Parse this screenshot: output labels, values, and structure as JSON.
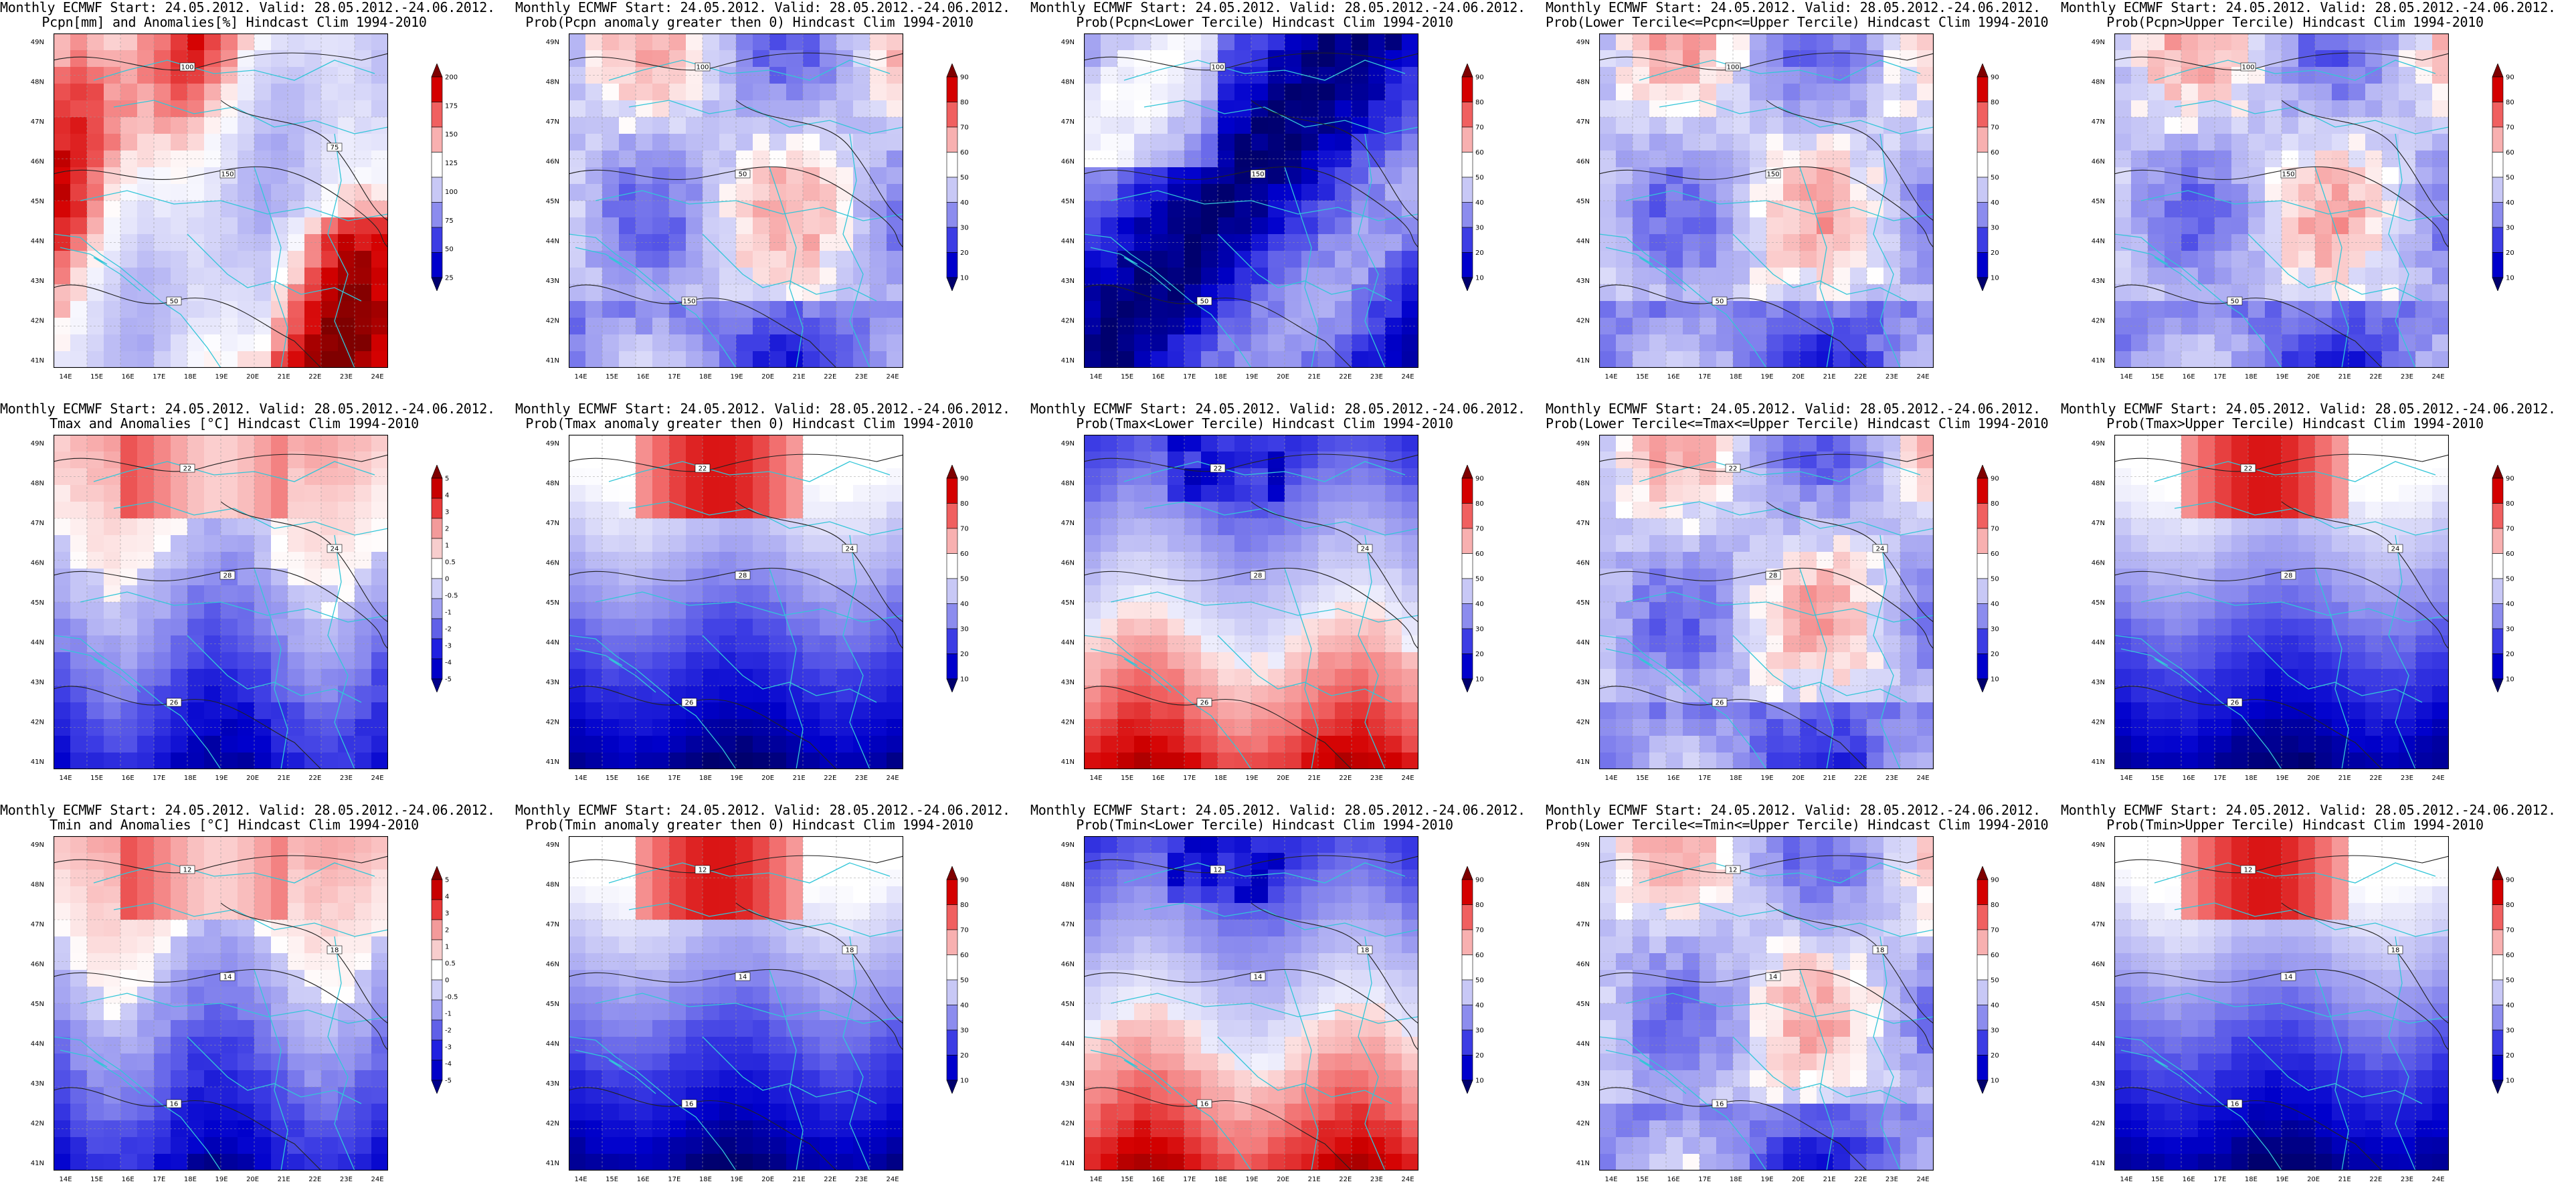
{
  "common": {
    "header": "Monthly ECMWF Start: 24.05.2012. Valid: 28.05.2012.-24.06.2012.",
    "lat_labels": [
      "49N",
      "48N",
      "47N",
      "46N",
      "45N",
      "44N",
      "43N",
      "42N",
      "41N"
    ],
    "lon_labels": [
      "14E",
      "15E",
      "16E",
      "17E",
      "18E",
      "19E",
      "20E",
      "21E",
      "22E",
      "23E",
      "24E"
    ]
  },
  "panels": [
    {
      "id": "pcpn-anom",
      "subtitle": "Pcpn[mm] and Anomalies[%] Hindcast Clim 1994-2010",
      "field": "pcpn",
      "scheme": "anom_pcpn",
      "levels": [
        "200",
        "175",
        "150",
        "125",
        "100",
        "75",
        "50",
        "25"
      ],
      "contours": [
        "100",
        "150",
        "50",
        "75"
      ]
    },
    {
      "id": "pcpn-prob-pos",
      "subtitle": "Prob(Pcpn anomaly greater then 0) Hindcast Clim 1994-2010",
      "field": "pcpn",
      "scheme": "prob_mid",
      "levels": [
        "90",
        "80",
        "70",
        "60",
        "50",
        "40",
        "30",
        "20",
        "10"
      ],
      "contours": [
        "100",
        "50",
        "150"
      ]
    },
    {
      "id": "pcpn-prob-lower",
      "subtitle": "Prob(Pcpn<Lower Tercile) Hindcast Clim 1994-2010",
      "field": "pcpn",
      "scheme": "prob_low",
      "levels": [
        "90",
        "80",
        "70",
        "60",
        "50",
        "40",
        "30",
        "20",
        "10"
      ],
      "contours": [
        "100",
        "150",
        "50"
      ]
    },
    {
      "id": "pcpn-prob-middle",
      "subtitle": "Prob(Lower Tercile<=Pcpn<=Upper Tercile) Hindcast Clim 1994-2010",
      "field": "pcpn",
      "scheme": "prob_mid",
      "levels": [
        "90",
        "80",
        "70",
        "60",
        "50",
        "40",
        "30",
        "20",
        "10"
      ],
      "contours": [
        "100",
        "150",
        "50"
      ]
    },
    {
      "id": "pcpn-prob-upper",
      "subtitle": "Prob(Pcpn>Upper Tercile) Hindcast Clim 1994-2010",
      "field": "pcpn",
      "scheme": "prob_mid",
      "levels": [
        "90",
        "80",
        "70",
        "60",
        "50",
        "40",
        "30",
        "20",
        "10"
      ],
      "contours": [
        "100",
        "150",
        "50"
      ]
    },
    {
      "id": "tmax-anom",
      "subtitle": "Tmax and Anomalies [°C] Hindcast Clim 1994-2010",
      "field": "tmax",
      "scheme": "anom_t",
      "levels": [
        "5",
        "4",
        "3",
        "2",
        "1",
        "0.5",
        "0",
        "-0.5",
        "-1",
        "-2",
        "-3",
        "-4",
        "-5"
      ],
      "contours": [
        "22",
        "28",
        "26",
        "24"
      ]
    },
    {
      "id": "tmax-prob-pos",
      "subtitle": "Prob(Tmax anomaly greater then 0) Hindcast Clim 1994-2010",
      "field": "tmax",
      "scheme": "prob_high",
      "levels": [
        "90",
        "80",
        "70",
        "60",
        "50",
        "40",
        "30",
        "20",
        "10"
      ],
      "contours": [
        "22",
        "28",
        "26",
        "24"
      ]
    },
    {
      "id": "tmax-prob-lower",
      "subtitle": "Prob(Tmax<Lower Tercile) Hindcast Clim 1994-2010",
      "field": "tmax",
      "scheme": "prob_low_t",
      "levels": [
        "90",
        "80",
        "70",
        "60",
        "50",
        "40",
        "30",
        "20",
        "10"
      ],
      "contours": [
        "22",
        "28",
        "26",
        "24"
      ]
    },
    {
      "id": "tmax-prob-middle",
      "subtitle": "Prob(Lower Tercile<=Tmax<=Upper Tercile) Hindcast Clim 1994-2010",
      "field": "tmax",
      "scheme": "prob_mid",
      "levels": [
        "90",
        "80",
        "70",
        "60",
        "50",
        "40",
        "30",
        "20",
        "10"
      ],
      "contours": [
        "22",
        "28",
        "26",
        "24"
      ]
    },
    {
      "id": "tmax-prob-upper",
      "subtitle": "Prob(Tmax>Upper Tercile) Hindcast Clim 1994-2010",
      "field": "tmax",
      "scheme": "prob_high",
      "levels": [
        "90",
        "80",
        "70",
        "60",
        "50",
        "40",
        "30",
        "20",
        "10"
      ],
      "contours": [
        "22",
        "28",
        "26",
        "24"
      ]
    },
    {
      "id": "tmin-anom",
      "subtitle": "Tmin and Anomalies [°C] Hindcast Clim 1994-2010",
      "field": "tmin",
      "scheme": "anom_tmin",
      "levels": [
        "5",
        "4",
        "3",
        "2",
        "1",
        "0.5",
        "0",
        "-0.5",
        "-1",
        "-2",
        "-3",
        "-4",
        "-5"
      ],
      "contours": [
        "12",
        "14",
        "16",
        "18"
      ]
    },
    {
      "id": "tmin-prob-pos",
      "subtitle": "Prob(Tmin anomaly greater then 0) Hindcast Clim 1994-2010",
      "field": "tmin",
      "scheme": "prob_high",
      "levels": [
        "90",
        "80",
        "70",
        "60",
        "50",
        "40",
        "30",
        "20",
        "10"
      ],
      "contours": [
        "12",
        "14",
        "16",
        "18"
      ]
    },
    {
      "id": "tmin-prob-lower",
      "subtitle": "Prob(Tmin<Lower Tercile) Hindcast Clim 1994-2010",
      "field": "tmin",
      "scheme": "prob_low_t",
      "levels": [
        "90",
        "80",
        "70",
        "60",
        "50",
        "40",
        "30",
        "20",
        "10"
      ],
      "contours": [
        "12",
        "14",
        "16",
        "18"
      ]
    },
    {
      "id": "tmin-prob-middle",
      "subtitle": "Prob(Lower Tercile<=Tmin<=Upper Tercile) Hindcast Clim 1994-2010",
      "field": "tmin",
      "scheme": "prob_mid",
      "levels": [
        "90",
        "80",
        "70",
        "60",
        "50",
        "40",
        "30",
        "20",
        "10"
      ],
      "contours": [
        "12",
        "14",
        "16",
        "18"
      ]
    },
    {
      "id": "tmin-prob-upper",
      "subtitle": "Prob(Tmin>Upper Tercile) Hindcast Clim 1994-2010",
      "field": "tmin",
      "scheme": "prob_high",
      "levels": [
        "90",
        "80",
        "70",
        "60",
        "50",
        "40",
        "30",
        "20",
        "10"
      ],
      "contours": [
        "12",
        "14",
        "16",
        "18"
      ]
    }
  ],
  "colors": {
    "anom": [
      "#7f0000",
      "#c80000",
      "#e83a3a",
      "#f39a9a",
      "#f7cdcd",
      "#ffffff",
      "#cfcff7",
      "#9f9ff0",
      "#6060e8",
      "#2020e0",
      "#0000c8",
      "#00008a"
    ],
    "prob": [
      "#7f0000",
      "#d40000",
      "#f06060",
      "#f8b0b0",
      "#ffffff",
      "#c8c8f6",
      "#8c8cee",
      "#3c3ce4",
      "#0000cc",
      "#00006e"
    ],
    "coast": "#33c6d8",
    "contour": "#222222",
    "grid": "#9a9a9a"
  }
}
